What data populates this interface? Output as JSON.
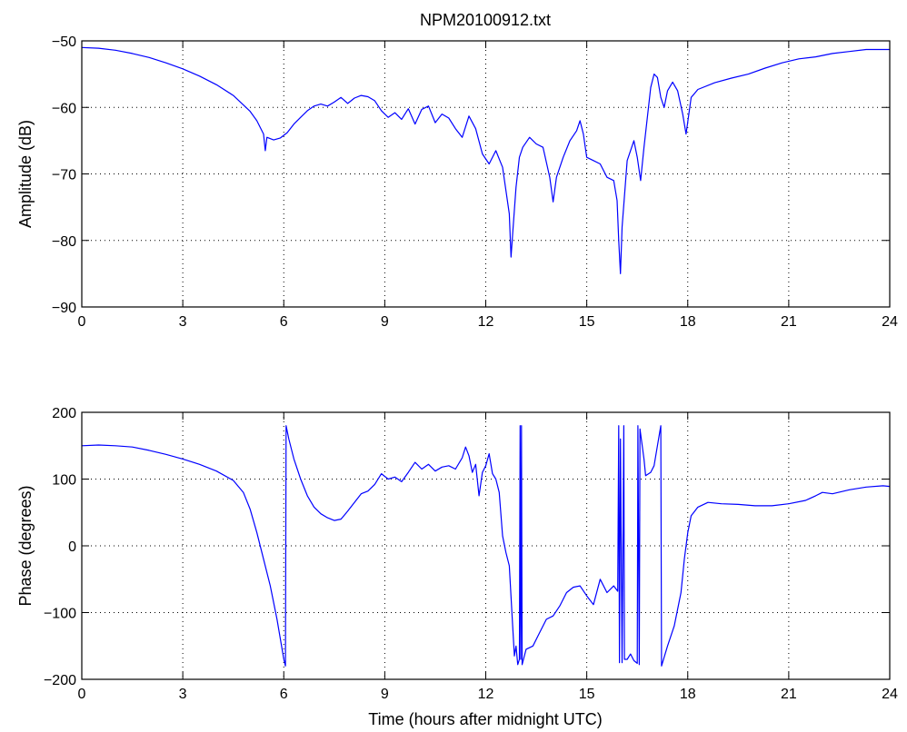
{
  "figure": {
    "title": "NPM20100912.txt",
    "xlabel": "Time (hours after midnight UTC)"
  },
  "chart_data": [
    {
      "type": "line",
      "title": "NPM20100912.txt",
      "xlabel": "",
      "ylabel": "Amplitude (dB)",
      "xlim": [
        0,
        24
      ],
      "ylim": [
        -90,
        -50
      ],
      "xticks": [
        0,
        3,
        6,
        9,
        12,
        15,
        18,
        21,
        24
      ],
      "yticks": [
        -90,
        -80,
        -70,
        -60,
        -50
      ],
      "grid": true,
      "line_color": "#0000ff",
      "series": [
        {
          "values": [
            [
              0,
              -51
            ],
            [
              0.5,
              -51.1
            ],
            [
              1,
              -51.4
            ],
            [
              1.5,
              -51.9
            ],
            [
              2,
              -52.5
            ],
            [
              2.5,
              -53.3
            ],
            [
              3,
              -54.2
            ],
            [
              3.5,
              -55.3
            ],
            [
              4,
              -56.6
            ],
            [
              4.5,
              -58.2
            ],
            [
              5,
              -60.6
            ],
            [
              5.2,
              -62
            ],
            [
              5.4,
              -64
            ],
            [
              5.45,
              -66.5
            ],
            [
              5.5,
              -64.5
            ],
            [
              5.7,
              -64.9
            ],
            [
              5.9,
              -64.6
            ],
            [
              6.1,
              -63.8
            ],
            [
              6.3,
              -62.5
            ],
            [
              6.5,
              -61.5
            ],
            [
              6.7,
              -60.5
            ],
            [
              6.9,
              -59.8
            ],
            [
              7.1,
              -59.5
            ],
            [
              7.3,
              -59.8
            ],
            [
              7.5,
              -59.2
            ],
            [
              7.7,
              -58.5
            ],
            [
              7.9,
              -59.4
            ],
            [
              8.1,
              -58.6
            ],
            [
              8.3,
              -58.2
            ],
            [
              8.5,
              -58.4
            ],
            [
              8.7,
              -59
            ],
            [
              8.9,
              -60.5
            ],
            [
              9.1,
              -61.5
            ],
            [
              9.3,
              -60.8
            ],
            [
              9.5,
              -61.8
            ],
            [
              9.7,
              -60.2
            ],
            [
              9.9,
              -62.5
            ],
            [
              10.1,
              -60.3
            ],
            [
              10.3,
              -59.8
            ],
            [
              10.5,
              -62.3
            ],
            [
              10.7,
              -61
            ],
            [
              10.9,
              -61.6
            ],
            [
              11.1,
              -63.2
            ],
            [
              11.3,
              -64.5
            ],
            [
              11.5,
              -61.3
            ],
            [
              11.7,
              -63.2
            ],
            [
              11.9,
              -67
            ],
            [
              12.1,
              -68.5
            ],
            [
              12.3,
              -66.5
            ],
            [
              12.5,
              -69
            ],
            [
              12.6,
              -72.5
            ],
            [
              12.7,
              -76
            ],
            [
              12.75,
              -82.5
            ],
            [
              12.8,
              -79
            ],
            [
              12.9,
              -72
            ],
            [
              13.0,
              -67.5
            ],
            [
              13.1,
              -66
            ],
            [
              13.3,
              -64.5
            ],
            [
              13.5,
              -65.5
            ],
            [
              13.7,
              -66
            ],
            [
              13.9,
              -70.5
            ],
            [
              14.0,
              -74.2
            ],
            [
              14.1,
              -70.5
            ],
            [
              14.3,
              -67.5
            ],
            [
              14.5,
              -65
            ],
            [
              14.7,
              -63.5
            ],
            [
              14.8,
              -62
            ],
            [
              14.9,
              -64
            ],
            [
              15.0,
              -67.5
            ],
            [
              15.2,
              -68
            ],
            [
              15.4,
              -68.5
            ],
            [
              15.6,
              -70.5
            ],
            [
              15.8,
              -71
            ],
            [
              15.9,
              -74
            ],
            [
              15.95,
              -80
            ],
            [
              16.0,
              -85
            ],
            [
              16.05,
              -78
            ],
            [
              16.2,
              -68
            ],
            [
              16.4,
              -65
            ],
            [
              16.5,
              -67.5
            ],
            [
              16.6,
              -71
            ],
            [
              16.7,
              -66
            ],
            [
              16.9,
              -57
            ],
            [
              17.0,
              -55
            ],
            [
              17.1,
              -55.5
            ],
            [
              17.2,
              -58.5
            ],
            [
              17.3,
              -60
            ],
            [
              17.4,
              -57.5
            ],
            [
              17.55,
              -56.2
            ],
            [
              17.7,
              -57.5
            ],
            [
              17.85,
              -61
            ],
            [
              17.95,
              -64
            ],
            [
              18.1,
              -58.5
            ],
            [
              18.3,
              -57.3
            ],
            [
              18.8,
              -56.3
            ],
            [
              19.3,
              -55.6
            ],
            [
              19.8,
              -55
            ],
            [
              20.3,
              -54.1
            ],
            [
              20.8,
              -53.3
            ],
            [
              21.3,
              -52.7
            ],
            [
              21.8,
              -52.4
            ],
            [
              22.0,
              -52.2
            ],
            [
              22.3,
              -51.9
            ],
            [
              22.8,
              -51.6
            ],
            [
              23.3,
              -51.3
            ],
            [
              24,
              -51.3
            ]
          ]
        }
      ]
    },
    {
      "type": "line",
      "title": "",
      "xlabel": "Time (hours after midnight UTC)",
      "ylabel": "Phase (degrees)",
      "xlim": [
        0,
        24
      ],
      "ylim": [
        -200,
        200
      ],
      "xticks": [
        0,
        3,
        6,
        9,
        12,
        15,
        18,
        21,
        24
      ],
      "yticks": [
        -200,
        -100,
        0,
        100,
        200
      ],
      "grid": true,
      "line_color": "#0000ff",
      "series": [
        {
          "values": [
            [
              0,
              150
            ],
            [
              0.5,
              151
            ],
            [
              1,
              150
            ],
            [
              1.5,
              148
            ],
            [
              2,
              143
            ],
            [
              2.5,
              137
            ],
            [
              3,
              130
            ],
            [
              3.5,
              122
            ],
            [
              4,
              112
            ],
            [
              4.5,
              98
            ],
            [
              4.8,
              80
            ],
            [
              5.0,
              55
            ],
            [
              5.2,
              20
            ],
            [
              5.4,
              -20
            ],
            [
              5.6,
              -60
            ],
            [
              5.8,
              -110
            ],
            [
              6.0,
              -170
            ],
            [
              6.05,
              -180
            ],
            [
              6.07,
              180
            ],
            [
              6.15,
              160
            ],
            [
              6.3,
              130
            ],
            [
              6.5,
              100
            ],
            [
              6.7,
              75
            ],
            [
              6.9,
              58
            ],
            [
              7.1,
              48
            ],
            [
              7.3,
              42
            ],
            [
              7.5,
              38
            ],
            [
              7.7,
              40
            ],
            [
              7.9,
              52
            ],
            [
              8.1,
              65
            ],
            [
              8.3,
              78
            ],
            [
              8.5,
              82
            ],
            [
              8.7,
              92
            ],
            [
              8.9,
              108
            ],
            [
              9.1,
              100
            ],
            [
              9.3,
              103
            ],
            [
              9.5,
              96
            ],
            [
              9.7,
              110
            ],
            [
              9.9,
              125
            ],
            [
              10.1,
              115
            ],
            [
              10.3,
              122
            ],
            [
              10.5,
              112
            ],
            [
              10.7,
              118
            ],
            [
              10.9,
              120
            ],
            [
              11.1,
              115
            ],
            [
              11.3,
              132
            ],
            [
              11.4,
              148
            ],
            [
              11.5,
              135
            ],
            [
              11.6,
              110
            ],
            [
              11.7,
              122
            ],
            [
              11.8,
              75
            ],
            [
              11.9,
              110
            ],
            [
              12.0,
              120
            ],
            [
              12.1,
              138
            ],
            [
              12.2,
              108
            ],
            [
              12.3,
              100
            ],
            [
              12.4,
              80
            ],
            [
              12.5,
              15
            ],
            [
              12.6,
              -10
            ],
            [
              12.7,
              -30
            ],
            [
              12.8,
              -120
            ],
            [
              12.85,
              -165
            ],
            [
              12.9,
              -150
            ],
            [
              12.95,
              -178
            ],
            [
              13.0,
              -170
            ],
            [
              13.02,
              180
            ],
            [
              13.04,
              -170
            ],
            [
              13.06,
              180
            ],
            [
              13.08,
              -178
            ],
            [
              13.2,
              -155
            ],
            [
              13.4,
              -150
            ],
            [
              13.6,
              -130
            ],
            [
              13.8,
              -110
            ],
            [
              14.0,
              -105
            ],
            [
              14.2,
              -90
            ],
            [
              14.4,
              -70
            ],
            [
              14.6,
              -62
            ],
            [
              14.8,
              -60
            ],
            [
              15.0,
              -75
            ],
            [
              15.2,
              -88
            ],
            [
              15.4,
              -50
            ],
            [
              15.6,
              -70
            ],
            [
              15.8,
              -60
            ],
            [
              15.92,
              -68
            ],
            [
              15.95,
              180
            ],
            [
              15.97,
              -175
            ],
            [
              16.0,
              160
            ],
            [
              16.05,
              -175
            ],
            [
              16.1,
              180
            ],
            [
              16.12,
              -170
            ],
            [
              16.2,
              -170
            ],
            [
              16.3,
              -162
            ],
            [
              16.4,
              -172
            ],
            [
              16.5,
              -176
            ],
            [
              16.52,
              180
            ],
            [
              16.56,
              -178
            ],
            [
              16.58,
              175
            ],
            [
              16.7,
              130
            ],
            [
              16.75,
              105
            ],
            [
              16.9,
              110
            ],
            [
              17.0,
              120
            ],
            [
              17.2,
              180
            ],
            [
              17.22,
              -180
            ],
            [
              17.4,
              -150
            ],
            [
              17.6,
              -120
            ],
            [
              17.8,
              -70
            ],
            [
              17.9,
              -20
            ],
            [
              18.0,
              20
            ],
            [
              18.1,
              45
            ],
            [
              18.3,
              58
            ],
            [
              18.6,
              65
            ],
            [
              19.0,
              63
            ],
            [
              19.5,
              62
            ],
            [
              20.0,
              60
            ],
            [
              20.5,
              60
            ],
            [
              21.0,
              63
            ],
            [
              21.5,
              68
            ],
            [
              21.8,
              75
            ],
            [
              22.0,
              80
            ],
            [
              22.3,
              78
            ],
            [
              22.8,
              84
            ],
            [
              23.3,
              88
            ],
            [
              23.8,
              90
            ],
            [
              24,
              89
            ]
          ]
        }
      ]
    }
  ]
}
